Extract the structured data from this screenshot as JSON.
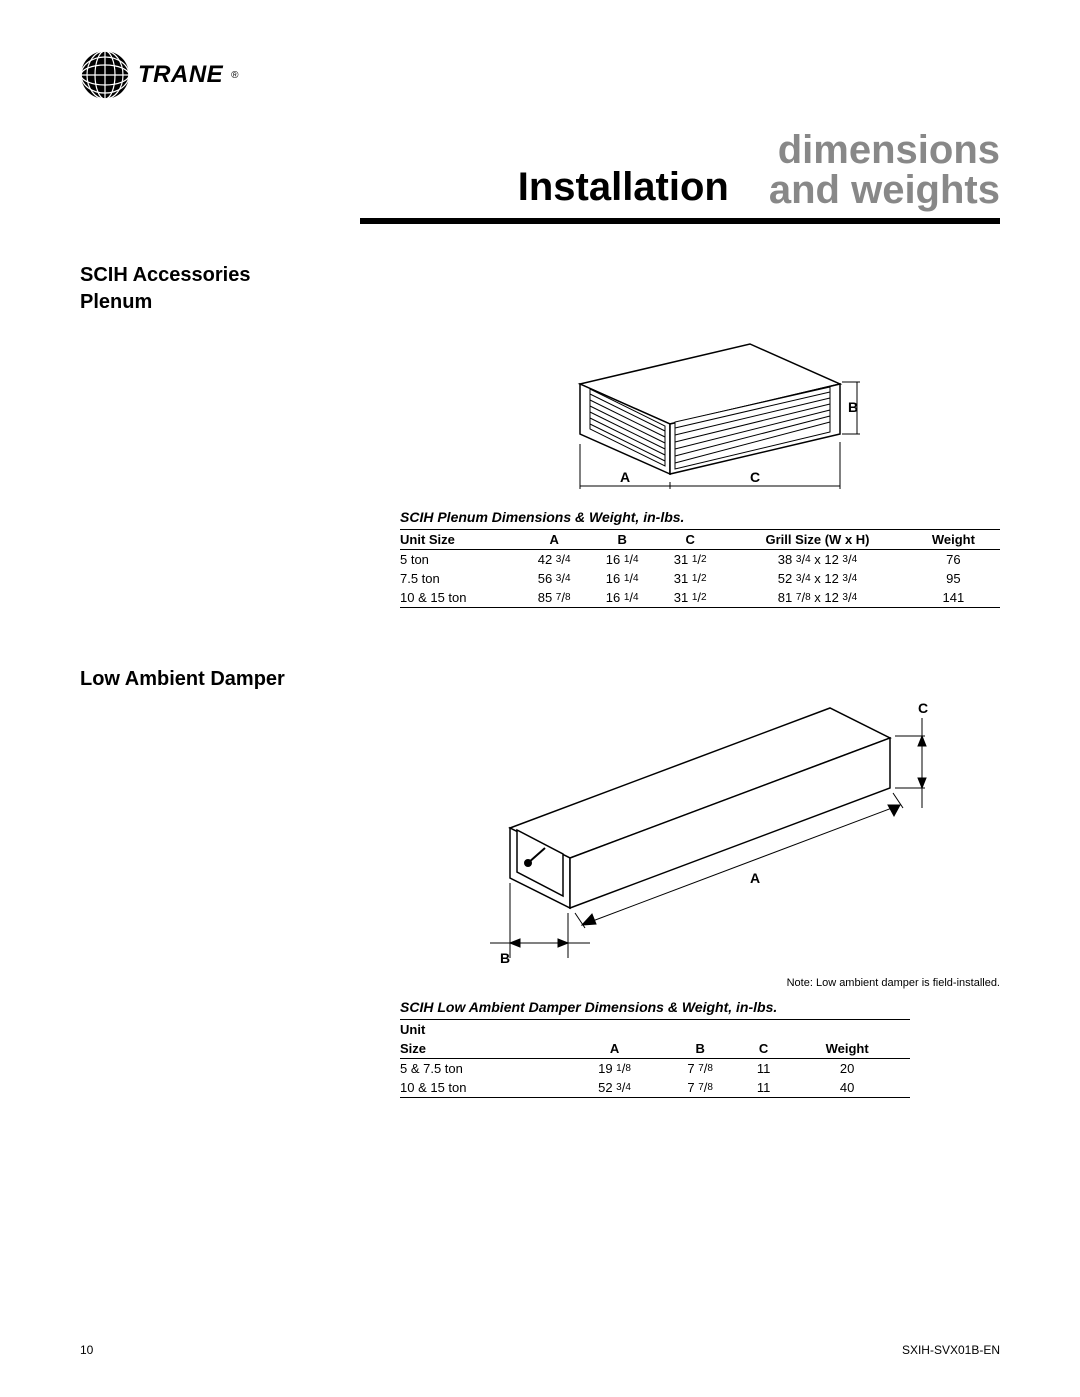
{
  "brand": "TRANE",
  "header": {
    "title_left": "Installation",
    "title_right_line1": "dimensions",
    "title_right_line2": "and weights"
  },
  "section1": {
    "heading": "SCIH Accessories",
    "sub": "Plenum",
    "diagram_labels": {
      "A": "A",
      "B": "B",
      "C": "C"
    },
    "table_title": "SCIH Plenum Dimensions & Weight, in-lbs.",
    "columns": [
      "Unit Size",
      "A",
      "B",
      "C",
      "Grill Size (W x H)",
      "Weight"
    ],
    "rows": [
      {
        "size": "5  ton",
        "A": {
          "whole": "42",
          "num": "3",
          "den": "4"
        },
        "B": {
          "whole": "16",
          "num": "1",
          "den": "4"
        },
        "C": {
          "whole": "31",
          "num": "1",
          "den": "2"
        },
        "grill": {
          "w_whole": "38",
          "w_num": "3",
          "w_den": "4",
          "h_whole": "12",
          "h_num": "3",
          "h_den": "4"
        },
        "wt": "76"
      },
      {
        "size": "7.5  ton",
        "A": {
          "whole": "56",
          "num": "3",
          "den": "4"
        },
        "B": {
          "whole": "16",
          "num": "1",
          "den": "4"
        },
        "C": {
          "whole": "31",
          "num": "1",
          "den": "2"
        },
        "grill": {
          "w_whole": "52",
          "w_num": "3",
          "w_den": "4",
          "h_whole": "12",
          "h_num": "3",
          "h_den": "4"
        },
        "wt": "95"
      },
      {
        "size": "10 & 15 ton",
        "A": {
          "whole": "85",
          "num": "7",
          "den": "8"
        },
        "B": {
          "whole": "16",
          "num": "1",
          "den": "4"
        },
        "C": {
          "whole": "31",
          "num": "1",
          "den": "2"
        },
        "grill": {
          "w_whole": "81",
          "w_num": "7",
          "w_den": "8",
          "h_whole": "12",
          "h_num": "3",
          "h_den": "4"
        },
        "wt": "141"
      }
    ]
  },
  "section2": {
    "heading": "Low Ambient Damper",
    "diagram_labels": {
      "A": "A",
      "B": "B",
      "C": "C"
    },
    "note": "Note: Low ambient damper is field-installed.",
    "table_title": "SCIH Low Ambient Damper Dimensions & Weight, in-lbs.",
    "columns_line1": "Unit",
    "columns": [
      "Size",
      "A",
      "B",
      "C",
      "Weight"
    ],
    "rows": [
      {
        "size": "5 & 7.5 ton",
        "A": {
          "whole": "19",
          "num": "1",
          "den": "8"
        },
        "B": {
          "whole": "7",
          "num": "7",
          "den": "8"
        },
        "C": "11",
        "wt": "20"
      },
      {
        "size": "10 & 15 ton",
        "A": {
          "whole": "52",
          "num": "3",
          "den": "4"
        },
        "B": {
          "whole": "7",
          "num": "7",
          "den": "8"
        },
        "C": "11",
        "wt": "40"
      }
    ]
  },
  "footer": {
    "page": "10",
    "doc": "SXIH-SVX01B-EN"
  },
  "colors": {
    "brand_black": "#000000",
    "gray_title": "#888888",
    "line": "#000000"
  }
}
